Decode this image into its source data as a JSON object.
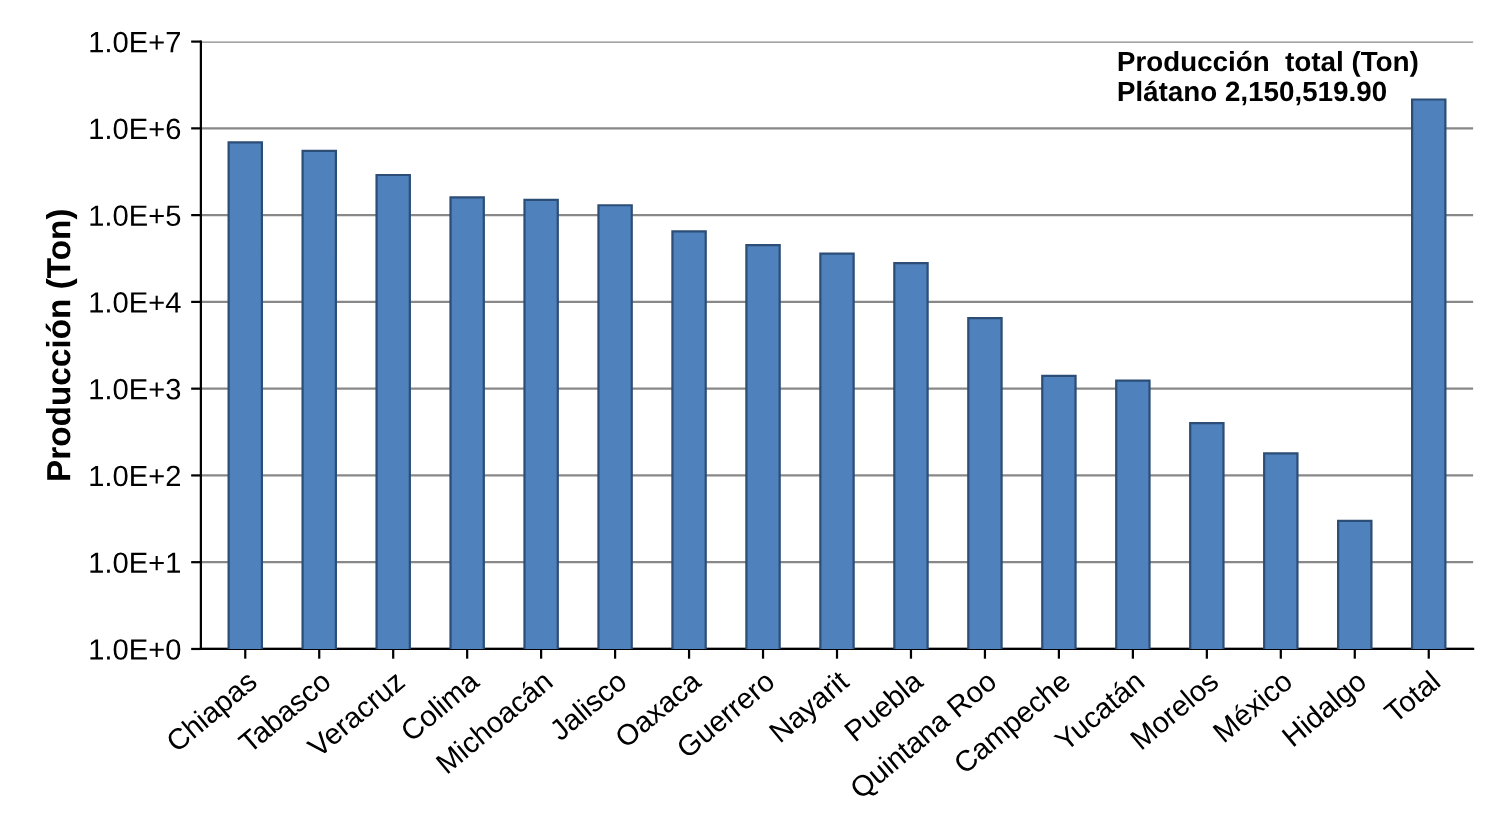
{
  "chart_data": {
    "type": "bar",
    "ylabel": "Producción (Ton)",
    "categories": [
      "Chiapas",
      "Tabasco",
      "Veracruz",
      "Colima",
      "Michoacán",
      "Jalisco",
      "Oaxaca",
      "Guerrero",
      "Nayarit",
      "Puebla",
      "Quintana Roo",
      "Campeche",
      "Yucatán",
      "Morelos",
      "México",
      "Hidalgo",
      "Total"
    ],
    "values": [
      690000,
      550000,
      290000,
      160000,
      150000,
      130000,
      65000,
      45000,
      36000,
      28000,
      6500,
      1400,
      1240,
      400,
      180,
      30,
      2150519.9
    ],
    "color": "#4f81bd",
    "log": true,
    "ylim": [
      1,
      10000000
    ],
    "yticks": [
      {
        "value": 1,
        "label": "1.0E+0"
      },
      {
        "value": 10,
        "label": "1.0E+1"
      },
      {
        "value": 100,
        "label": "1.0E+2"
      },
      {
        "value": 1000,
        "label": "1.0E+3"
      },
      {
        "value": 10000,
        "label": "1.0E+4"
      },
      {
        "value": 100000,
        "label": "1.0E+5"
      },
      {
        "value": 1000000,
        "label": "1.0E+6"
      },
      {
        "value": 10000000,
        "label": "1.0E+7"
      }
    ],
    "grid": "y",
    "annotations": [
      "Producción  total (Ton)\nPlátano 2,150,519.90"
    ]
  }
}
